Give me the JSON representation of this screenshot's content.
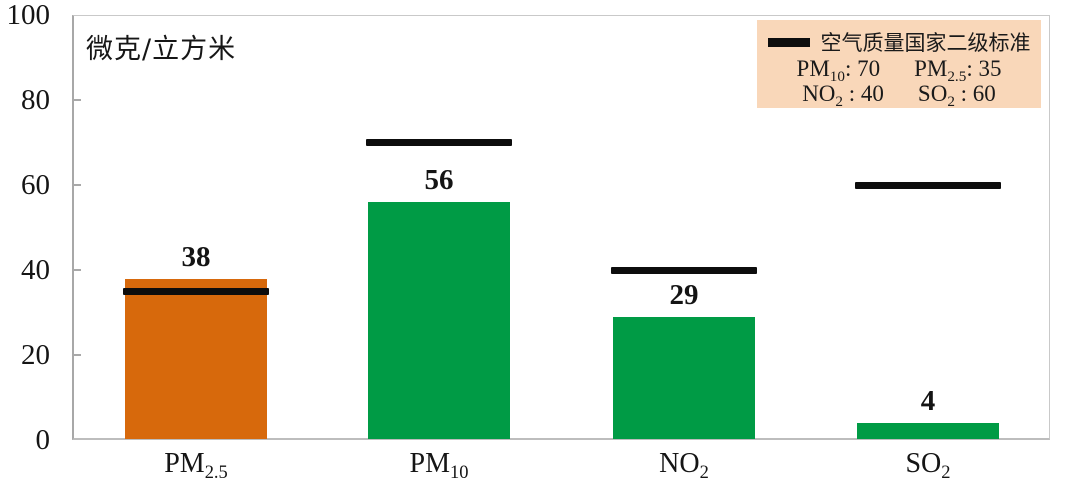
{
  "chart_data": {
    "type": "bar",
    "unit_label": "微克/立方米",
    "ylim": [
      0,
      100
    ],
    "yticks": [
      0,
      20,
      40,
      60,
      80,
      100
    ],
    "grid": false,
    "categories": [
      {
        "key": "pm2_5",
        "main": "PM",
        "sub": "2.5"
      },
      {
        "key": "pm10",
        "main": "PM",
        "sub": "10"
      },
      {
        "key": "no2",
        "main": "NO",
        "sub": "2"
      },
      {
        "key": "so2",
        "main": "SO",
        "sub": "2"
      }
    ],
    "values": [
      38,
      56,
      29,
      4
    ],
    "bar_colors": [
      "#D7690C",
      "#009B45",
      "#009B45",
      "#009B45"
    ],
    "standard_values": [
      35,
      70,
      40,
      60
    ],
    "standard_line_color": "#0d0d0d",
    "legend": {
      "title": "空气质量国家二级标准",
      "bg_color": "#F9D7B9",
      "position": "top-right",
      "rows": [
        [
          {
            "main": "PM",
            "sub": "10",
            "sep": ": ",
            "value": "70"
          },
          {
            "main": "PM",
            "sub": "2.5",
            "sep": ": ",
            "value": "35"
          }
        ],
        [
          {
            "main": "NO",
            "sub": "2",
            "sep": " : ",
            "value": "40"
          },
          {
            "main": "SO",
            "sub": "2",
            "sep": " : ",
            "value": "60"
          }
        ]
      ]
    }
  }
}
